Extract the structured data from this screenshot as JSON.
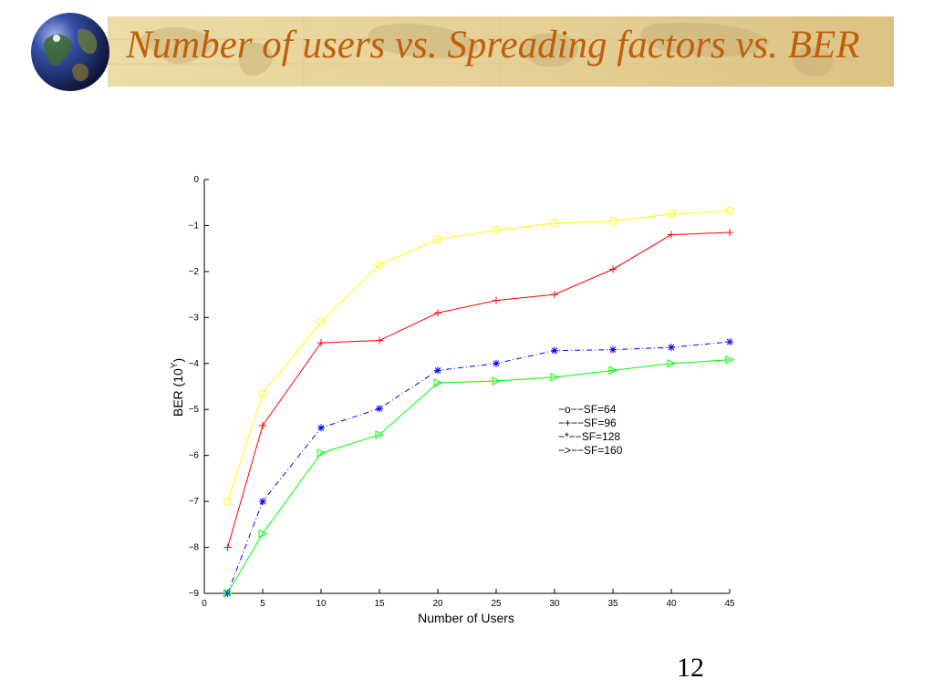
{
  "slide": {
    "title": "Number of users vs. Spreading factors vs. BER",
    "page_number": "12"
  },
  "chart_data": {
    "type": "line",
    "title": "",
    "xlabel": "Number of Users",
    "ylabel": "BER (10^Y)",
    "ylabel_base": "BER (10",
    "ylabel_exp": "Y",
    "ylabel_close": ")",
    "xlim": [
      0,
      45
    ],
    "ylim": [
      -9,
      0
    ],
    "x_ticks": [
      0,
      5,
      10,
      15,
      20,
      25,
      30,
      35,
      40,
      45
    ],
    "y_ticks": [
      0,
      -1,
      -2,
      -3,
      -4,
      -5,
      -6,
      -7,
      -8,
      -9
    ],
    "x_tick_labels": [
      "0",
      "5",
      "10",
      "15",
      "20",
      "25",
      "30",
      "35",
      "40",
      "45"
    ],
    "y_tick_labels": [
      "0",
      "−1",
      "−2",
      "−3",
      "−4",
      "−5",
      "−6",
      "−7",
      "−8",
      "−9"
    ],
    "grid": false,
    "legend_position": "center-right",
    "x": [
      2,
      5,
      10,
      15,
      20,
      25,
      30,
      35,
      40,
      45
    ],
    "series": [
      {
        "name": "SF=64",
        "legend_label": "−o−−SF=64",
        "color": "#ffff00",
        "marker": "circle",
        "dash": "solid",
        "values": [
          -7.0,
          -4.65,
          -3.1,
          -1.85,
          -1.3,
          -1.1,
          -0.95,
          -0.9,
          -0.75,
          -0.68
        ]
      },
      {
        "name": "SF=96",
        "legend_label": "−+−−SF=96",
        "color": "#ff0000",
        "marker": "plus",
        "dash": "solid",
        "values": [
          -8.0,
          -5.35,
          -3.55,
          -3.5,
          -2.9,
          -2.63,
          -2.5,
          -1.95,
          -1.2,
          -1.15
        ]
      },
      {
        "name": "SF=128",
        "legend_label": "−*−−SF=128",
        "color": "#0000ff",
        "marker": "star",
        "dash": "dashdot",
        "values": [
          -9.0,
          -7.0,
          -5.4,
          -4.98,
          -4.15,
          -4.0,
          -3.72,
          -3.7,
          -3.65,
          -3.53
        ]
      },
      {
        "name": "SF=160",
        "legend_label": "−>−−SF=160",
        "color": "#00ff00",
        "marker": "triangle-right",
        "dash": "solid",
        "values": [
          -9.0,
          -7.7,
          -5.95,
          -5.55,
          -4.42,
          -4.38,
          -4.3,
          -4.15,
          -4.0,
          -3.92
        ]
      }
    ]
  }
}
